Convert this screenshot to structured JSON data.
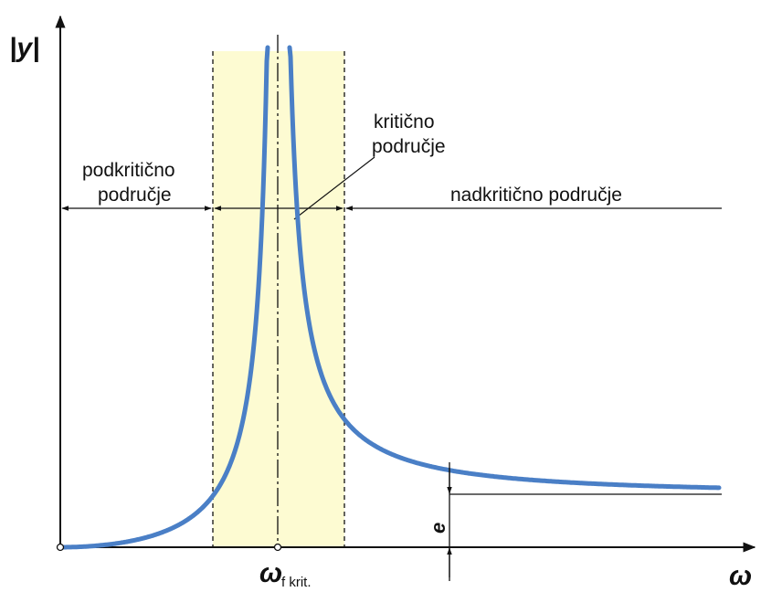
{
  "diagram": {
    "y_axis_label": "|y|",
    "x_axis_label": "ω",
    "critical_speed_label": "ω",
    "critical_speed_subscript": "f krit.",
    "subcritical_label_line1": "podkritično",
    "subcritical_label_line2": "područje",
    "critical_label_line1": "kritično",
    "critical_label_line2": "područje",
    "supercritical_label": "nadkritično područje",
    "eccentricity_label": "e"
  },
  "colors": {
    "curve": "#4a7fc6",
    "critical_band": "#fdfbd2",
    "lines": "#111111"
  }
}
